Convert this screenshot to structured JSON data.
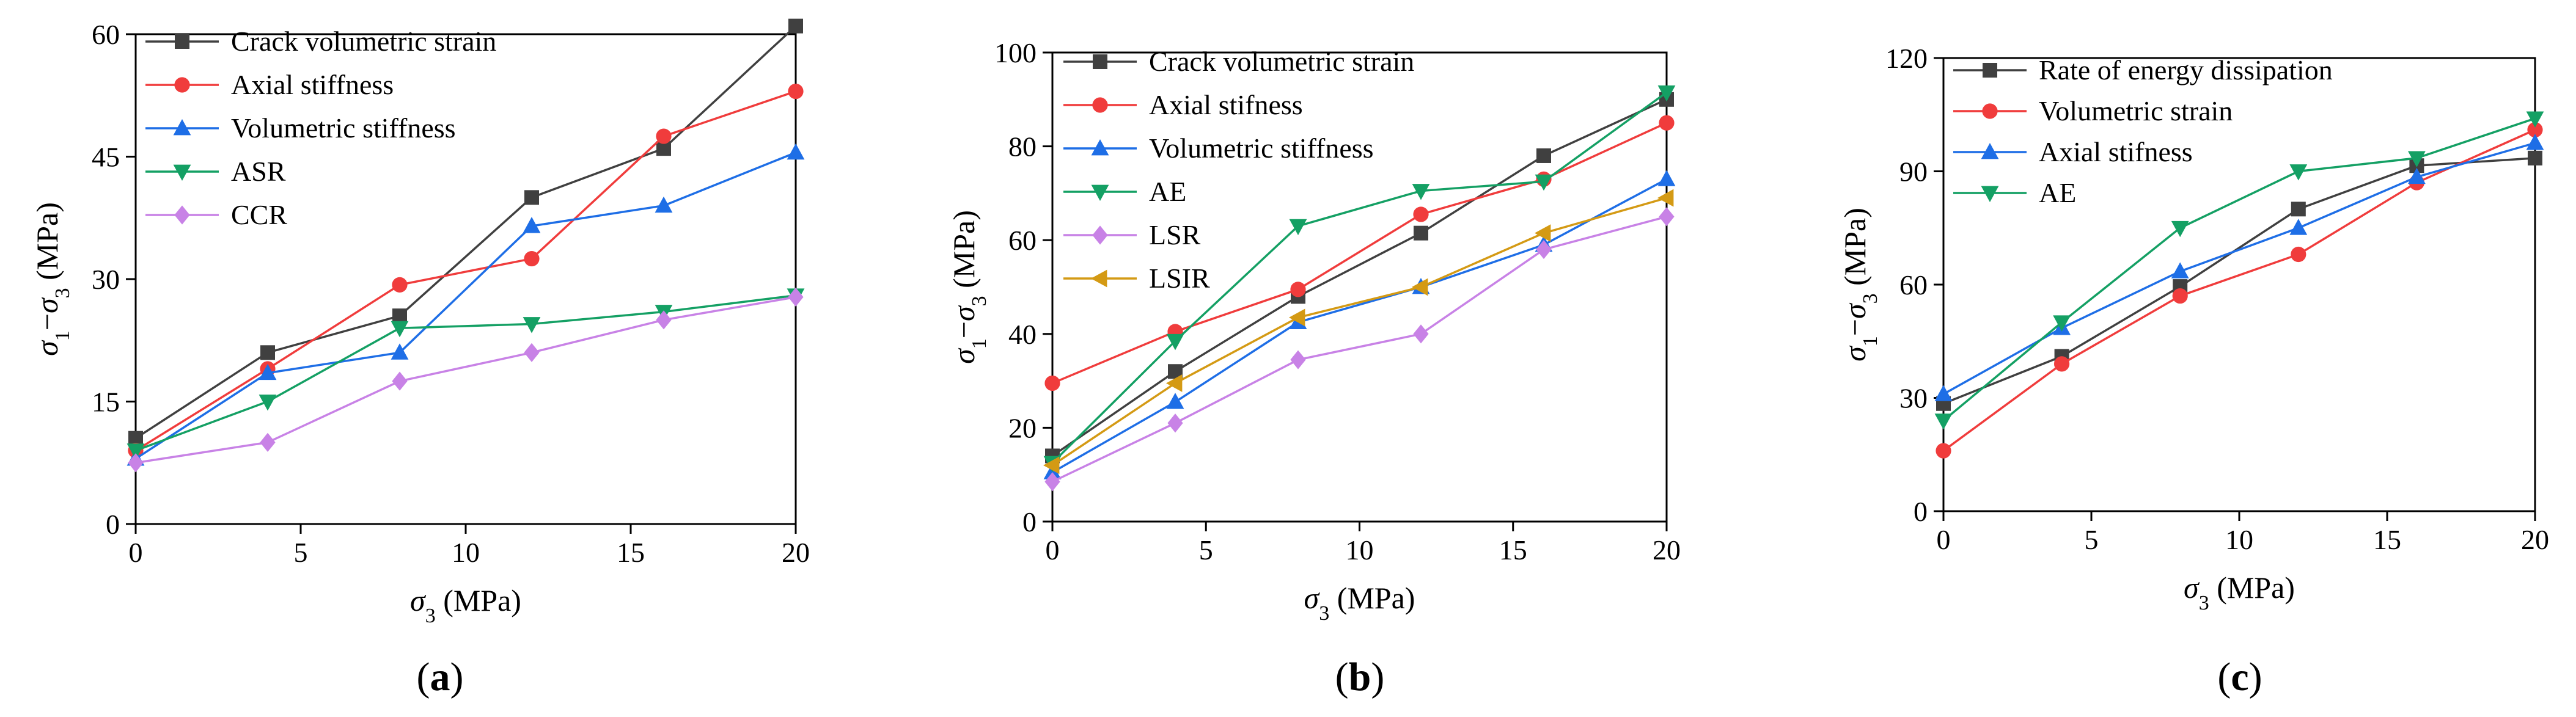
{
  "chart_data": [
    {
      "type": "line",
      "panel_label": "a",
      "xlabel": "σ3 (MPa)",
      "ylabel": "σ1−σ3 (MPa)",
      "xlim": [
        0,
        20
      ],
      "ylim": [
        0,
        60
      ],
      "xticks": [
        0,
        5,
        10,
        15,
        20
      ],
      "yticks": [
        0,
        15,
        30,
        45,
        60
      ],
      "grid": false,
      "legend": "top-left",
      "x": [
        0,
        4,
        8,
        12,
        16,
        20
      ],
      "series": [
        {
          "name": "Crack volumetric strain",
          "color": "#404040",
          "marker": "square",
          "values": [
            10.5,
            21,
            25.5,
            40,
            46,
            61
          ]
        },
        {
          "name": "Axial stiffness",
          "color": "#f03c3c",
          "marker": "circle",
          "values": [
            9,
            19,
            29.3,
            32.5,
            47.5,
            53
          ]
        },
        {
          "name": "Volumetric stiffness",
          "color": "#1e6ee6",
          "marker": "triangle-up",
          "values": [
            8,
            18.5,
            21,
            36.5,
            39,
            45.5
          ]
        },
        {
          "name": "ASR",
          "color": "#14a064",
          "marker": "triangle-down",
          "values": [
            9,
            15,
            24,
            24.5,
            26,
            28
          ]
        },
        {
          "name": "CCR",
          "color": "#c882e6",
          "marker": "diamond",
          "values": [
            7.5,
            10,
            17.5,
            21,
            25,
            27.8
          ]
        }
      ]
    },
    {
      "type": "line",
      "panel_label": "b",
      "xlabel": "σ3 (MPa)",
      "ylabel": "σ1−σ3 (MPa)",
      "xlim": [
        0,
        20
      ],
      "ylim": [
        0,
        100
      ],
      "xticks": [
        0,
        5,
        10,
        15,
        20
      ],
      "yticks": [
        0,
        20,
        40,
        60,
        80,
        100
      ],
      "grid": false,
      "legend": "top-left",
      "x": [
        0,
        4,
        8,
        12,
        16,
        20
      ],
      "series": [
        {
          "name": "Crack volumetric strain",
          "color": "#404040",
          "marker": "square",
          "values": [
            14,
            32,
            48,
            61.5,
            78,
            90
          ]
        },
        {
          "name": "Axial stifness",
          "color": "#f03c3c",
          "marker": "circle",
          "values": [
            29.5,
            40.5,
            49.5,
            65.5,
            73,
            85
          ]
        },
        {
          "name": "Volumetric stiffness",
          "color": "#1e6ee6",
          "marker": "triangle-up",
          "values": [
            10.5,
            25.5,
            42.5,
            50,
            59,
            73
          ]
        },
        {
          "name": "AE",
          "color": "#14a064",
          "marker": "triangle-down",
          "values": [
            12.5,
            38.5,
            63,
            70.5,
            72.5,
            91.5
          ]
        },
        {
          "name": "LSR",
          "color": "#c882e6",
          "marker": "diamond",
          "values": [
            8.5,
            21,
            34.5,
            40,
            58,
            65
          ]
        },
        {
          "name": "LSIR",
          "color": "#d49a14",
          "marker": "triangle-left",
          "values": [
            12,
            29.5,
            43.5,
            50,
            61.5,
            69
          ]
        }
      ]
    },
    {
      "type": "line",
      "panel_label": "c",
      "xlabel": "σ3 (MPa)",
      "ylabel": "σ1−σ3 (MPa)",
      "xlim": [
        0,
        20
      ],
      "ylim": [
        0,
        120
      ],
      "xticks": [
        0,
        5,
        10,
        15,
        20
      ],
      "yticks": [
        0,
        30,
        60,
        90,
        120
      ],
      "grid": false,
      "legend": "top-left",
      "x": [
        0,
        4,
        8,
        12,
        16,
        20
      ],
      "series": [
        {
          "name": "Rate of energy dissipation",
          "color": "#404040",
          "marker": "square",
          "values": [
            28.5,
            41,
            59.5,
            80,
            91.5,
            93.5
          ]
        },
        {
          "name": "Volumetric strain",
          "color": "#f03c3c",
          "marker": "circle",
          "values": [
            16,
            39,
            57,
            68,
            87,
            101
          ]
        },
        {
          "name": "Axial stifness",
          "color": "#1e6ee6",
          "marker": "triangle-up",
          "values": [
            31,
            48.5,
            63.5,
            75,
            88.5,
            97.5
          ]
        },
        {
          "name": "AE",
          "color": "#14a064",
          "marker": "triangle-down",
          "values": [
            24,
            50,
            75,
            90,
            93.5,
            104
          ]
        }
      ]
    }
  ]
}
